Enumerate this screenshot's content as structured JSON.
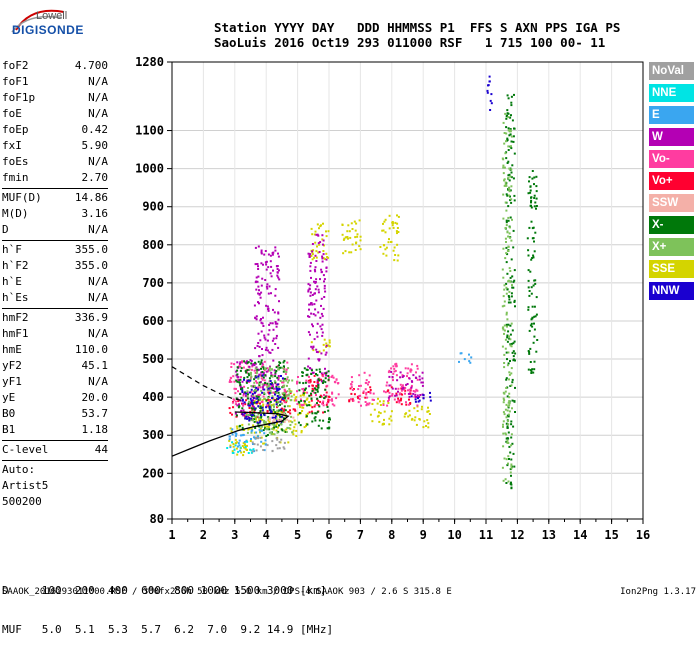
{
  "logo": {
    "top": "Lowell",
    "bottom": "DIGISONDE"
  },
  "header": {
    "line1": "Station YYYY DAY   DDD HHMMSS P1  FFS S AXN PPS IGA PS",
    "line2": "SaoLuis 2016 Oct19 293 011000 RSF   1 715 100 00- 11"
  },
  "params": [
    {
      "name": "foF2",
      "value": "4.700"
    },
    {
      "name": "foF1",
      "value": "N/A"
    },
    {
      "name": "foF1p",
      "value": "N/A"
    },
    {
      "name": "foE",
      "value": "N/A"
    },
    {
      "name": "foEp",
      "value": "0.42"
    },
    {
      "name": "fxI",
      "value": "5.90"
    },
    {
      "name": "foEs",
      "value": "N/A"
    },
    {
      "name": "fmin",
      "value": "2.70"
    },
    {
      "sep": true
    },
    {
      "name": "MUF(D)",
      "value": "14.86"
    },
    {
      "name": "M(D)",
      "value": "3.16"
    },
    {
      "name": "D",
      "value": "N/A"
    },
    {
      "sep": true
    },
    {
      "name": "h`F",
      "value": "355.0"
    },
    {
      "name": "h`F2",
      "value": "355.0"
    },
    {
      "name": "h`E",
      "value": "N/A"
    },
    {
      "name": "h`Es",
      "value": "N/A"
    },
    {
      "sep": true
    },
    {
      "name": "hmF2",
      "value": "336.9"
    },
    {
      "name": "hmF1",
      "value": "N/A"
    },
    {
      "name": "hmE",
      "value": "110.0"
    },
    {
      "name": "yF2",
      "value": "45.1"
    },
    {
      "name": "yF1",
      "value": "N/A"
    },
    {
      "name": "yE",
      "value": "20.0"
    },
    {
      "name": "B0",
      "value": "53.7"
    },
    {
      "name": "B1",
      "value": "1.18"
    },
    {
      "sep": true
    },
    {
      "name": "C-level",
      "value": "44"
    },
    {
      "sep": true
    },
    {
      "name": "Auto:",
      "value": ""
    },
    {
      "name": "Artist5",
      "value": ""
    },
    {
      "name": "500200",
      "value": ""
    }
  ],
  "legend": [
    {
      "label": "NoVal",
      "color": "#a0a0a0"
    },
    {
      "label": "NNE",
      "color": "#00e4e4"
    },
    {
      "label": "E",
      "color": "#3aa6f0"
    },
    {
      "label": "W",
      "color": "#b400b4"
    },
    {
      "label": "Vo-",
      "color": "#ff3ca0"
    },
    {
      "label": "Vo+",
      "color": "#ff0030"
    },
    {
      "label": "SSW",
      "color": "#f4b0a8"
    },
    {
      "label": "X-",
      "color": "#00780a"
    },
    {
      "label": "X+",
      "color": "#7ec25a"
    },
    {
      "label": "SSE",
      "color": "#d4d400"
    },
    {
      "label": "NNW",
      "color": "#1a00d0"
    }
  ],
  "bottom_table": {
    "row1": "D     100  200  400  600  800 1000 1500 3000 [km]",
    "row2": "MUF   5.0  5.1  5.3  5.7  6.2  7.0  9.2 14.9 [MHz]"
  },
  "footer": "SAAOK_2016293011000.RSF / 300fx256h 50 kHz 5.0 km / DPS-4 SAAOK 903 / 2.6 S 315.8 E",
  "version": "Ion2Png 1.3.17",
  "chart_data": {
    "type": "scatter",
    "title": "",
    "xlabel": "",
    "ylabel": "",
    "xlim": [
      1,
      16
    ],
    "xticks": [
      1,
      2,
      3,
      4,
      5,
      6,
      7,
      8,
      9,
      10,
      11,
      12,
      13,
      14,
      15,
      16
    ],
    "yticks": [
      80,
      200,
      300,
      400,
      500,
      600,
      700,
      800,
      900,
      1000,
      1100,
      1280
    ],
    "ylim": [
      80,
      1280
    ],
    "grid": true,
    "series": [
      {
        "name": "SSE",
        "color": "#d4d400",
        "clusters": [
          [
            2.7,
            3.5,
            250,
            330
          ],
          [
            3.5,
            4.7,
            280,
            400
          ],
          [
            4.7,
            5.4,
            300,
            420
          ],
          [
            5.4,
            6.0,
            520,
            560
          ],
          [
            5.4,
            6.0,
            760,
            860
          ],
          [
            6.3,
            7.0,
            780,
            870
          ],
          [
            7.3,
            8.0,
            330,
            400
          ],
          [
            7.6,
            8.2,
            760,
            880
          ],
          [
            8.3,
            9.2,
            320,
            380
          ]
        ]
      },
      {
        "name": "Vo+",
        "color": "#ff0030",
        "clusters": [
          [
            2.8,
            3.8,
            350,
            400
          ],
          [
            4.0,
            5.0,
            360,
            420
          ],
          [
            5.3,
            6.0,
            360,
            470
          ],
          [
            6.6,
            7.3,
            390,
            430
          ],
          [
            7.8,
            8.6,
            380,
            430
          ]
        ]
      },
      {
        "name": "Vo-",
        "color": "#ff3ca0",
        "clusters": [
          [
            2.8,
            4.7,
            380,
            500
          ],
          [
            4.9,
            6.3,
            380,
            460
          ],
          [
            6.6,
            7.4,
            380,
            470
          ],
          [
            7.7,
            8.8,
            380,
            500
          ]
        ]
      },
      {
        "name": "W",
        "color": "#b400b4",
        "clusters": [
          [
            3.6,
            4.4,
            420,
            800
          ],
          [
            5.3,
            5.9,
            430,
            830
          ],
          [
            3.0,
            3.7,
            350,
            500
          ],
          [
            7.8,
            9.0,
            400,
            470
          ]
        ]
      },
      {
        "name": "X-",
        "color": "#00780a",
        "clusters": [
          [
            3.0,
            4.6,
            300,
            500
          ],
          [
            5.0,
            6.0,
            320,
            480
          ],
          [
            11.6,
            11.9,
            160,
            1200
          ],
          [
            12.3,
            12.6,
            450,
            1000
          ]
        ]
      },
      {
        "name": "X+",
        "color": "#7ec25a",
        "clusters": [
          [
            3.3,
            4.8,
            300,
            480
          ],
          [
            11.5,
            11.8,
            180,
            1150
          ]
        ]
      },
      {
        "name": "E",
        "color": "#3aa6f0",
        "clusters": [
          [
            2.8,
            4.0,
            260,
            320
          ],
          [
            10.1,
            10.5,
            490,
            520
          ]
        ]
      },
      {
        "name": "NNE",
        "color": "#00e4e4",
        "clusters": [
          [
            2.7,
            3.6,
            255,
            285
          ]
        ]
      },
      {
        "name": "NNW",
        "color": "#1a00d0",
        "clusters": [
          [
            3.2,
            4.5,
            330,
            460
          ],
          [
            8.6,
            9.3,
            390,
            420
          ],
          [
            11.0,
            11.2,
            1150,
            1250
          ]
        ]
      },
      {
        "name": "NoVal",
        "color": "#a0a0a0",
        "clusters": [
          [
            3.5,
            4.6,
            260,
            300
          ]
        ]
      },
      {
        "name": "SSW",
        "color": "#f4b0a8",
        "clusters": [
          [
            4.0,
            5.0,
            330,
            360
          ]
        ]
      }
    ],
    "profile_solid": [
      [
        1.0,
        245
      ],
      [
        1.6,
        265
      ],
      [
        2.2,
        285
      ],
      [
        2.7,
        300
      ],
      [
        3.1,
        312
      ],
      [
        3.6,
        322
      ],
      [
        4.1,
        330
      ],
      [
        4.5,
        337
      ],
      [
        4.7,
        350
      ],
      [
        4.4,
        356
      ],
      [
        3.9,
        358
      ],
      [
        3.4,
        360
      ],
      [
        3.0,
        361
      ]
    ],
    "profile_dashed": [
      [
        1.0,
        480
      ],
      [
        1.5,
        455
      ],
      [
        2.0,
        430
      ],
      [
        2.5,
        410
      ],
      [
        2.9,
        397
      ],
      [
        3.3,
        390
      ]
    ]
  }
}
